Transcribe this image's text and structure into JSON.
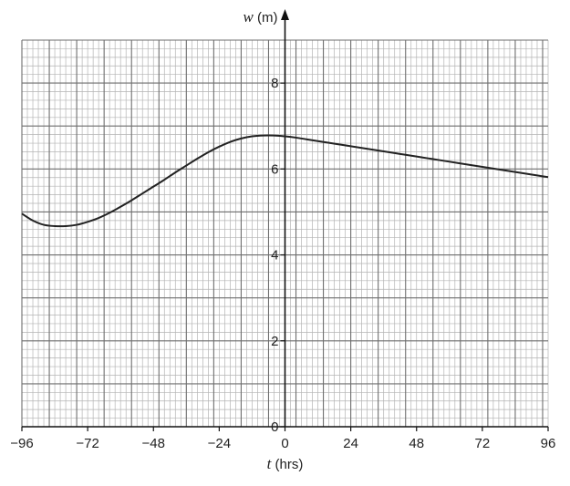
{
  "chart_data": {
    "type": "line",
    "title": "",
    "xlabel_var": "t",
    "xlabel_unit": " (hrs)",
    "ylabel_var": "w",
    "ylabel_unit": " (m)",
    "xlim": [
      -96,
      96
    ],
    "ylim": [
      0,
      9
    ],
    "x_ticks": [
      -96,
      -72,
      -48,
      -24,
      0,
      24,
      48,
      72,
      96
    ],
    "x_tick_labels": [
      "−96",
      "−72",
      "−48",
      "−24",
      "0",
      "24",
      "48",
      "72",
      "96"
    ],
    "y_ticks": [
      0,
      2,
      4,
      6,
      8
    ],
    "y_tick_labels": [
      "0",
      "2",
      "4",
      "6",
      "8"
    ],
    "grid": true,
    "grid_minor_x": 2,
    "grid_minor_y": 0.2,
    "series": [
      {
        "color": "#222222",
        "x": [
          -96,
          -92,
          -88,
          -84,
          -80,
          -76,
          -72,
          -68,
          -64,
          -60,
          -56,
          -52,
          -48,
          -44,
          -40,
          -36,
          -32,
          -28,
          -24,
          -20,
          -16,
          -12,
          -8,
          -4,
          0,
          4,
          8,
          12,
          16,
          20,
          24,
          28,
          32,
          36,
          40,
          44,
          48,
          52,
          56,
          60,
          64,
          68,
          72,
          76,
          80,
          84,
          88,
          92,
          96
        ],
        "y": [
          4.96,
          4.8,
          4.7,
          4.67,
          4.67,
          4.7,
          4.77,
          4.86,
          4.98,
          5.12,
          5.27,
          5.43,
          5.59,
          5.75,
          5.92,
          6.08,
          6.24,
          6.39,
          6.52,
          6.63,
          6.71,
          6.76,
          6.78,
          6.78,
          6.76,
          6.73,
          6.69,
          6.65,
          6.61,
          6.57,
          6.53,
          6.49,
          6.45,
          6.41,
          6.37,
          6.33,
          6.29,
          6.25,
          6.21,
          6.17,
          6.13,
          6.09,
          6.05,
          6.01,
          5.97,
          5.93,
          5.89,
          5.85,
          5.81
        ]
      }
    ]
  }
}
